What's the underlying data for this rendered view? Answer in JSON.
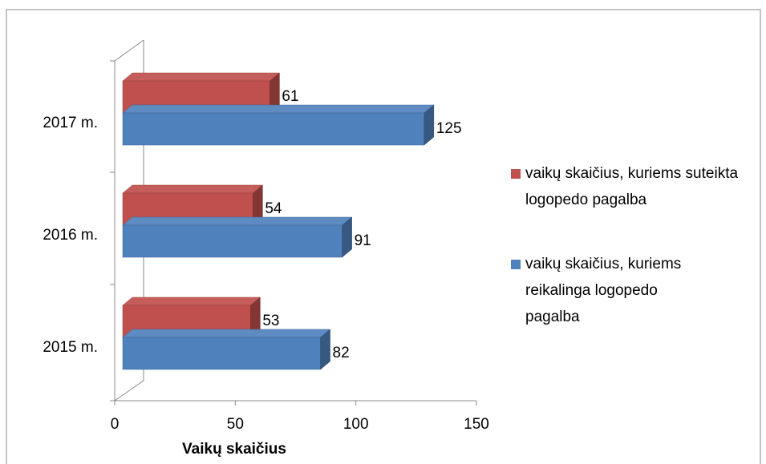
{
  "chart_data": {
    "type": "bar3d_horizontal",
    "categories": [
      "2015 m.",
      "2016 m.",
      "2017 m."
    ],
    "series": [
      {
        "name": "vaikų skaičius, kuriems suteikta logopedo pagalba",
        "color": "#c0504d",
        "values": [
          53,
          54,
          61
        ]
      },
      {
        "name": "vaikų skaičius, kuriems reikalinga logopedo pagalba",
        "color": "#4f81bd",
        "values": [
          82,
          91,
          125
        ]
      }
    ],
    "xlabel": "Vaikų skaičius",
    "xlim": [
      0,
      150
    ],
    "xticks": [
      0,
      50,
      100,
      150
    ],
    "legend": "right"
  }
}
